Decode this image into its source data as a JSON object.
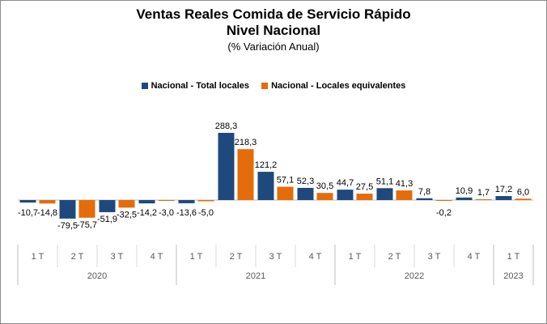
{
  "chart_data": {
    "type": "bar",
    "title": "Ventas Reales Comida de Servicio Rápido",
    "subtitle": "Nivel Nacional",
    "note": "(% Variación Anual)",
    "legend_position": "top",
    "grid": false,
    "categories": [
      {
        "quarter": "1 T",
        "year": "2020"
      },
      {
        "quarter": "2 T",
        "year": "2020"
      },
      {
        "quarter": "3 T",
        "year": "2020"
      },
      {
        "quarter": "4 T",
        "year": "2020"
      },
      {
        "quarter": "1 T",
        "year": "2021"
      },
      {
        "quarter": "2 T",
        "year": "2021"
      },
      {
        "quarter": "3 T",
        "year": "2021"
      },
      {
        "quarter": "4 T",
        "year": "2021"
      },
      {
        "quarter": "1 T",
        "year": "2022"
      },
      {
        "quarter": "2 T",
        "year": "2022"
      },
      {
        "quarter": "3 T",
        "year": "2022"
      },
      {
        "quarter": "4 T",
        "year": "2022"
      },
      {
        "quarter": "1 T",
        "year": "2023"
      }
    ],
    "years": [
      "2020",
      "2021",
      "2022",
      "2023"
    ],
    "series": [
      {
        "name": "Nacional - Total locales",
        "color": "#1f497d",
        "values": [
          -10.7,
          -79.5,
          -51.9,
          -14.2,
          -13.6,
          288.3,
          121.2,
          52.3,
          44.7,
          51.1,
          7.8,
          10.9,
          17.2
        ],
        "labels": [
          "-10,7",
          "-79,5",
          "-51,9",
          "-14,2",
          "-13,6",
          "288,3",
          "121,2",
          "52,3",
          "44,7",
          "51,1",
          "7,8",
          "10,9",
          "17,2"
        ]
      },
      {
        "name": "Nacional - Locales equivalentes",
        "color": "#e46c0a",
        "values": [
          -14.8,
          -75.7,
          -32.5,
          -3.0,
          -5.0,
          218.3,
          57.1,
          30.5,
          27.5,
          41.3,
          -0.2,
          1.7,
          6.0
        ],
        "labels": [
          "-14,8",
          "-75,7",
          "-32,5",
          "-3,0",
          "-5,0",
          "218,3",
          "57,1",
          "30,5",
          "27,5",
          "41,3",
          "-0,2",
          "1,7",
          "6,0"
        ]
      }
    ]
  }
}
